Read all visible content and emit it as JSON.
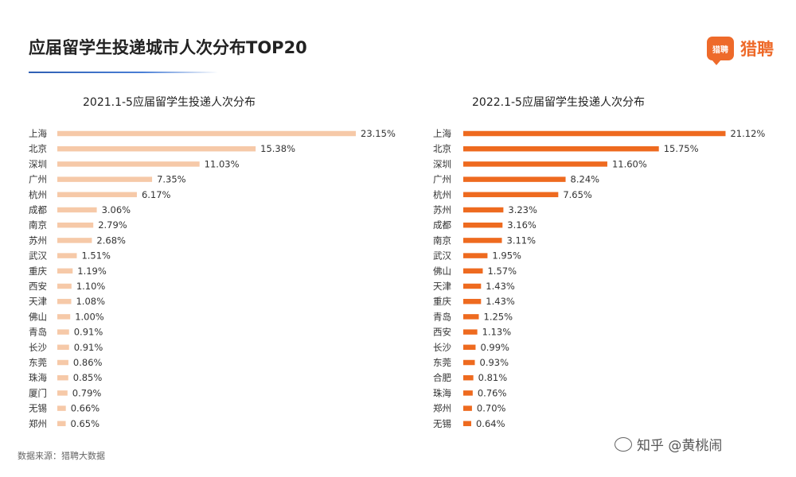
{
  "header": {
    "title": "应届留学生投递城市人次分布TOP20",
    "logo_badge": "猎聘",
    "logo_text": "猎聘"
  },
  "footer": {
    "source": "数据来源：猎聘大数据",
    "watermark": "知乎 @黄桃闹"
  },
  "chart_data": [
    {
      "type": "bar",
      "orientation": "horizontal",
      "title": "2021.1-5应届留学生投递人次分布",
      "unit": "%",
      "color": "#f6c9a8",
      "categories": [
        "上海",
        "北京",
        "深圳",
        "广州",
        "杭州",
        "成都",
        "南京",
        "苏州",
        "武汉",
        "重庆",
        "西安",
        "天津",
        "佛山",
        "青岛",
        "长沙",
        "东莞",
        "珠海",
        "厦门",
        "无锡",
        "郑州"
      ],
      "values": [
        23.15,
        15.38,
        11.03,
        7.35,
        6.17,
        3.06,
        2.79,
        2.68,
        1.51,
        1.19,
        1.1,
        1.08,
        1.0,
        0.91,
        0.91,
        0.86,
        0.85,
        0.79,
        0.66,
        0.65
      ],
      "labels": [
        "23.15%",
        "15.38%",
        "11.03%",
        "7.35%",
        "6.17%",
        "3.06%",
        "2.79%",
        "2.68%",
        "1.51%",
        "1.19%",
        "1.10%",
        "1.08%",
        "1.00%",
        "0.91%",
        "0.91%",
        "0.86%",
        "0.85%",
        "0.79%",
        "0.66%",
        "0.65%"
      ]
    },
    {
      "type": "bar",
      "orientation": "horizontal",
      "title": "2022.1-5应届留学生投递人次分布",
      "unit": "%",
      "color": "#ee6a1f",
      "categories": [
        "上海",
        "北京",
        "深圳",
        "广州",
        "杭州",
        "苏州",
        "成都",
        "南京",
        "武汉",
        "佛山",
        "天津",
        "重庆",
        "青岛",
        "西安",
        "长沙",
        "东莞",
        "合肥",
        "珠海",
        "郑州",
        "无锡"
      ],
      "values": [
        21.12,
        15.75,
        11.6,
        8.24,
        7.65,
        3.23,
        3.16,
        3.11,
        1.95,
        1.57,
        1.43,
        1.43,
        1.25,
        1.13,
        0.99,
        0.93,
        0.81,
        0.76,
        0.7,
        0.64
      ],
      "labels": [
        "21.12%",
        "15.75%",
        "11.60%",
        "8.24%",
        "7.65%",
        "3.23%",
        "3.16%",
        "3.11%",
        "1.95%",
        "1.57%",
        "1.43%",
        "1.43%",
        "1.25%",
        "1.13%",
        "0.99%",
        "0.93%",
        "0.81%",
        "0.76%",
        "0.70%",
        "0.64%"
      ]
    }
  ]
}
